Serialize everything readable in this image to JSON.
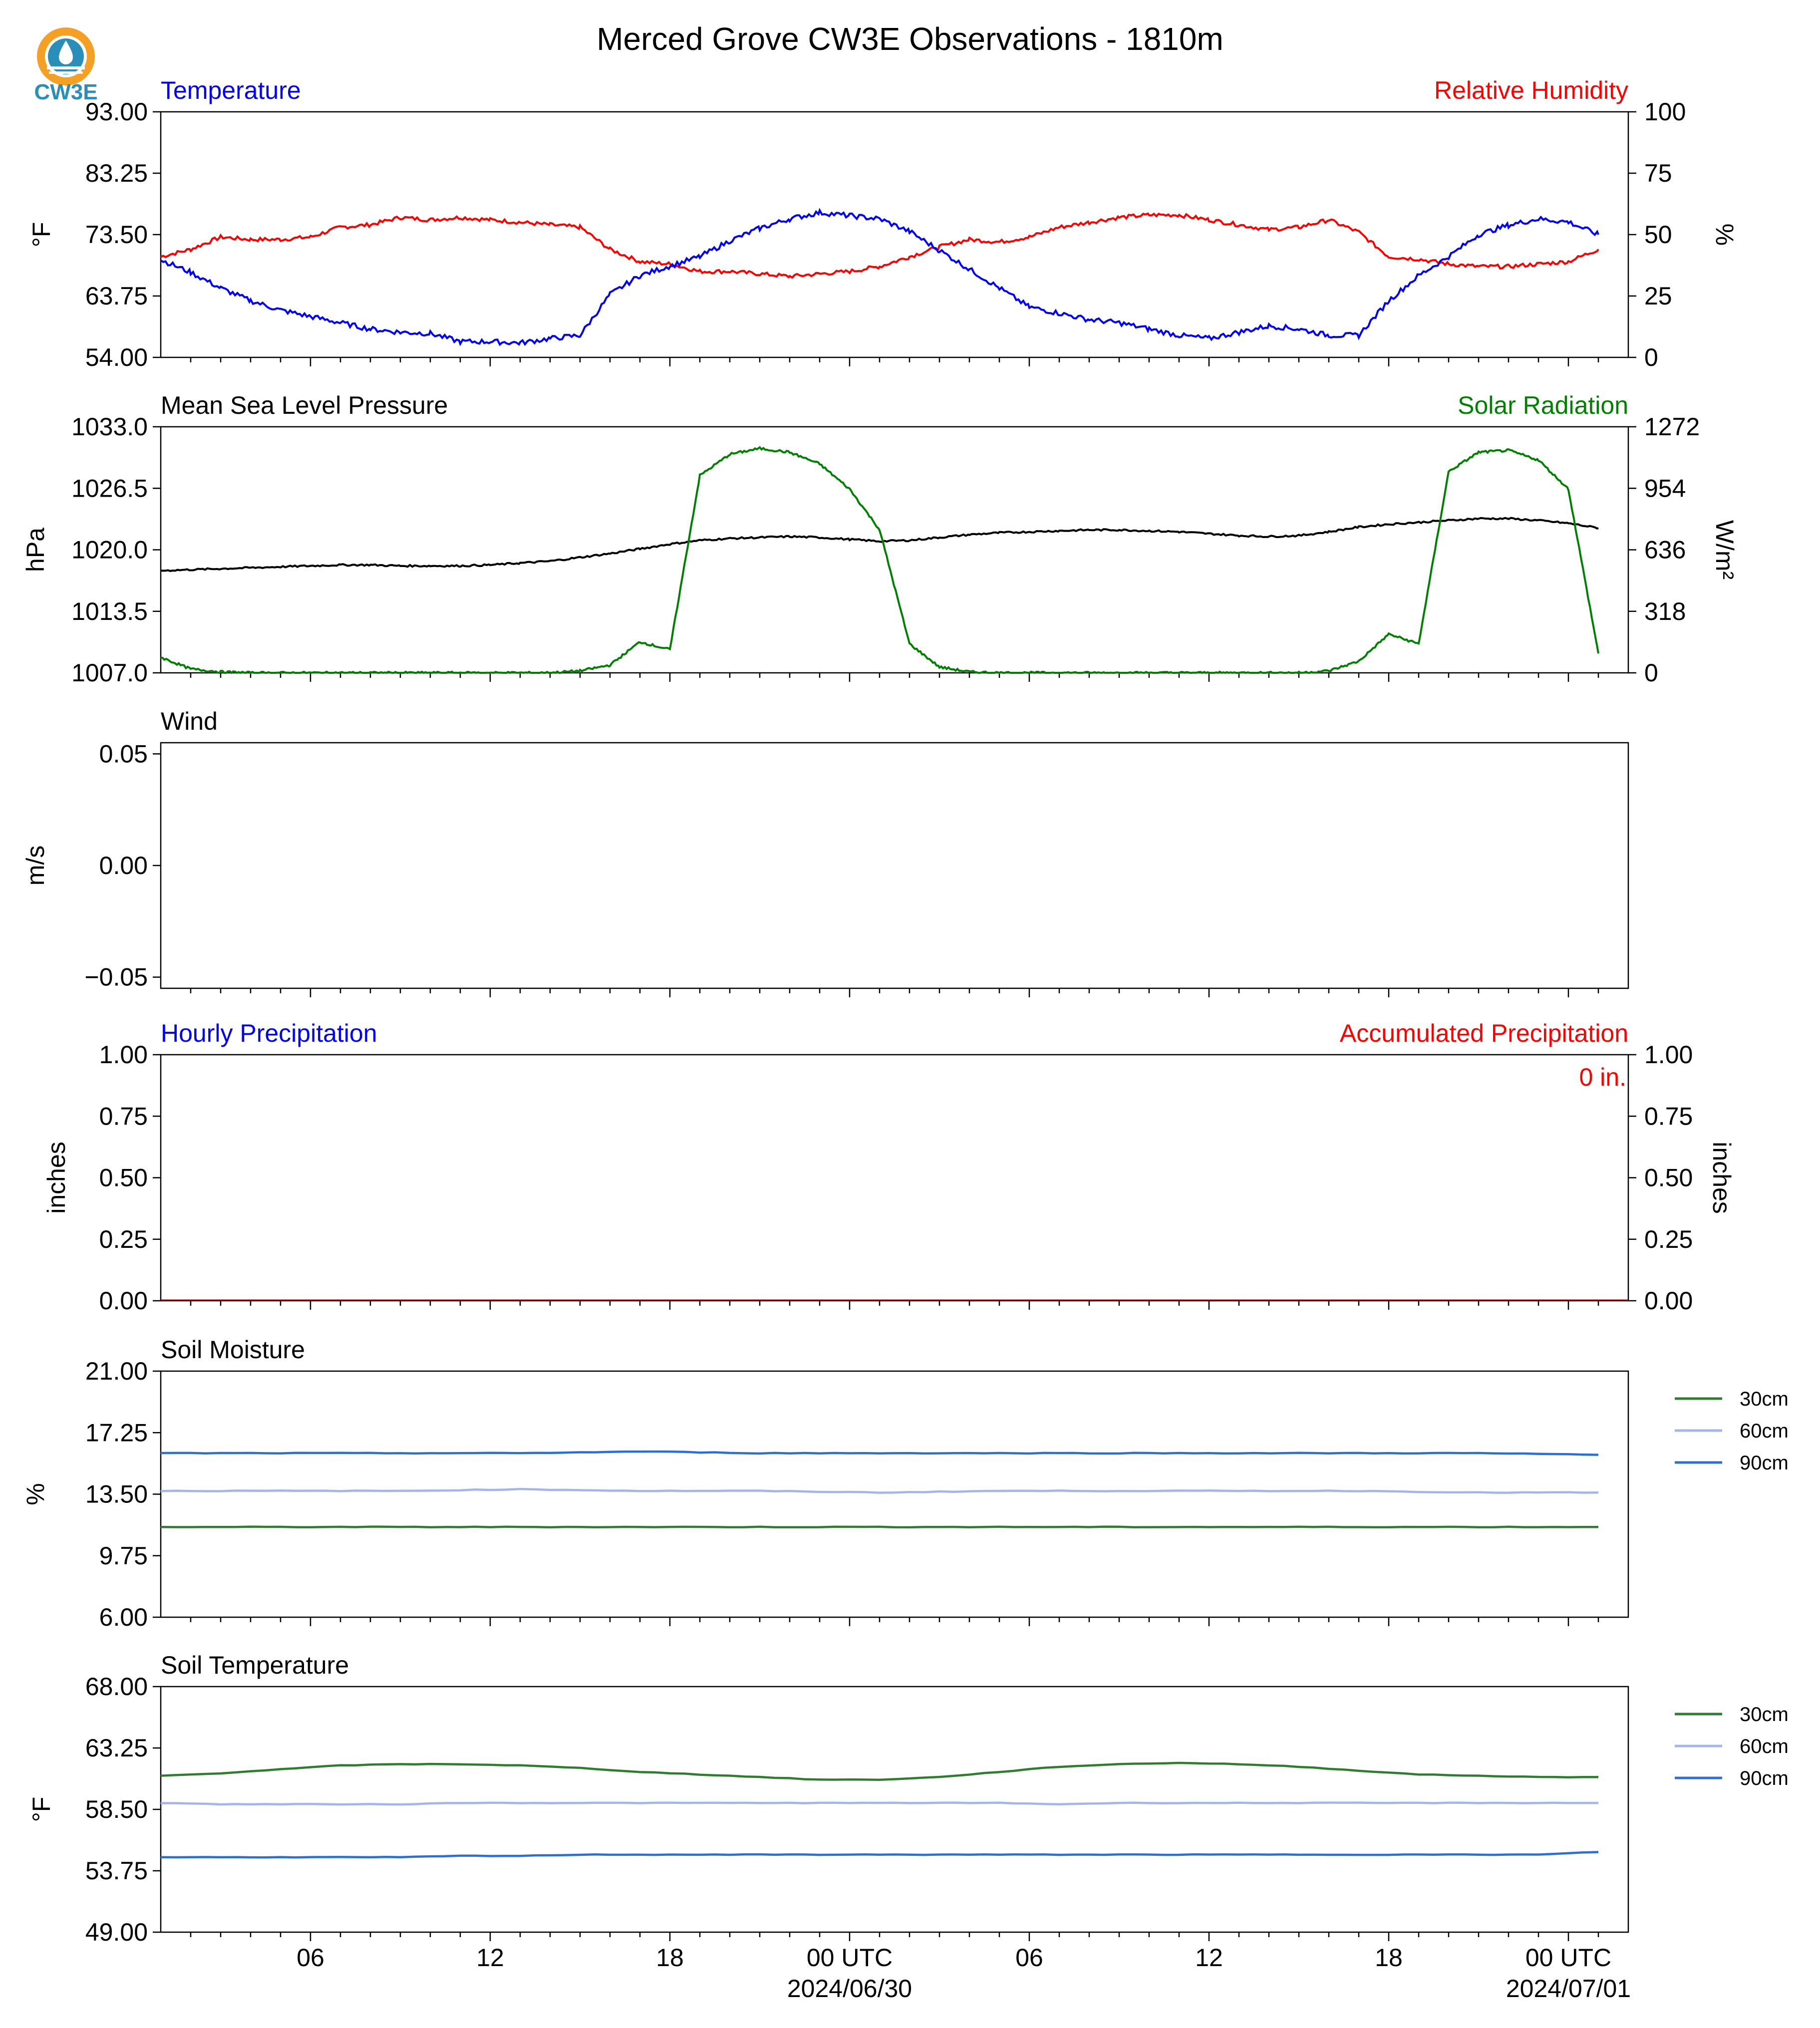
{
  "figure": {
    "title": "Merced Grove CW3E Observations - 1810m",
    "logo_text": "CW3E"
  },
  "x_axis": {
    "tick_labels": [
      "06",
      "12",
      "18",
      "00 UTC",
      "06",
      "12",
      "18",
      "00 UTC"
    ],
    "date_labels": [
      "2024/06/30",
      "2024/07/01"
    ]
  },
  "colors": {
    "temperature": "#0000ff",
    "humidity": "#ff0000",
    "pressure": "#000000",
    "solar": "#008000",
    "soil_30cm": "#2e7d2e",
    "soil_60cm": "#a4b4ec",
    "soil_90cm": "#2b6fd6"
  },
  "chart_data": [
    {
      "type": "line",
      "panel": "temperature-humidity",
      "title_left": "Temperature",
      "title_right": "Relative Humidity",
      "ylabel_left": "°F",
      "ylabel_right": "%",
      "ylim_left": [
        54.0,
        93.0
      ],
      "ylim_right": [
        0,
        100
      ],
      "yticks_left": [
        "93.00",
        "83.25",
        "73.50",
        "63.75",
        "54.00"
      ],
      "yticks_right": [
        "100",
        "75",
        "50",
        "25",
        "0"
      ],
      "x_hours": [
        0,
        1,
        2,
        3,
        4,
        5,
        6,
        7,
        8,
        9,
        10,
        11,
        12,
        13,
        14,
        15,
        16,
        17,
        18,
        19,
        20,
        21,
        22,
        23,
        24,
        25,
        26,
        27,
        28,
        29,
        30,
        31,
        32,
        33,
        34,
        35,
        36,
        37,
        38,
        39,
        40,
        41,
        42,
        43,
        44,
        45,
        46,
        47,
        48
      ],
      "series": [
        {
          "name": "Temperature",
          "axis": "left",
          "values": [
            69.5,
            67.5,
            65.0,
            63.0,
            61.5,
            60.5,
            59.5,
            58.5,
            58.0,
            57.8,
            56.5,
            56.5,
            56.3,
            57.0,
            57.5,
            64.0,
            67.0,
            68.5,
            70.0,
            72.5,
            74.5,
            76.0,
            77.0,
            76.5,
            76.0,
            74.0,
            71.0,
            68.0,
            65.0,
            62.0,
            61.0,
            60.0,
            59.5,
            58.5,
            57.5,
            57.0,
            58.0,
            59.0,
            58.5,
            57.5,
            57.5,
            63.0,
            67.0,
            70.0,
            73.5,
            75.0,
            76.0,
            75.5,
            73.5
          ]
        },
        {
          "name": "Relative Humidity",
          "axis": "right",
          "values": [
            41,
            44,
            49,
            48,
            48,
            49,
            53,
            54,
            57,
            56,
            57,
            56,
            55,
            54,
            53,
            44,
            39,
            38,
            35,
            35,
            34,
            33,
            34,
            35,
            37,
            41,
            45,
            48,
            47,
            49,
            53,
            55,
            57,
            58,
            58,
            56,
            54,
            52,
            53,
            56,
            51,
            41,
            40,
            38,
            37,
            37,
            38,
            39,
            44
          ]
        }
      ]
    },
    {
      "type": "line",
      "panel": "pressure-solar",
      "title_left": "Mean Sea Level Pressure",
      "title_right": "Solar Radiation",
      "ylabel_left": "hPa",
      "ylabel_right": "W/m²",
      "ylim_left": [
        1007.0,
        1033.0
      ],
      "ylim_right": [
        0,
        1272
      ],
      "yticks_left": [
        "1033.0",
        "1026.5",
        "1020.0",
        "1013.5",
        "1007.0"
      ],
      "yticks_right": [
        "1272",
        "954",
        "636",
        "318",
        "0"
      ],
      "x_hours": [
        0,
        1,
        2,
        3,
        4,
        5,
        6,
        7,
        8,
        9,
        10,
        11,
        12,
        13,
        14,
        15,
        16,
        17,
        18,
        19,
        20,
        21,
        22,
        23,
        24,
        25,
        26,
        27,
        28,
        29,
        30,
        31,
        32,
        33,
        34,
        35,
        36,
        37,
        38,
        39,
        40,
        41,
        42,
        43,
        44,
        45,
        46,
        47,
        48
      ],
      "series": [
        {
          "name": "Mean Sea Level Pressure",
          "axis": "left",
          "values": [
            1017.8,
            1017.9,
            1018.0,
            1018.1,
            1018.2,
            1018.3,
            1018.4,
            1018.4,
            1018.3,
            1018.3,
            1018.3,
            1018.4,
            1018.6,
            1018.8,
            1019.2,
            1019.6,
            1020.1,
            1020.6,
            1021.0,
            1021.2,
            1021.3,
            1021.4,
            1021.3,
            1021.1,
            1020.9,
            1021.0,
            1021.3,
            1021.6,
            1021.8,
            1021.9,
            1022.0,
            1022.1,
            1022.1,
            1022.0,
            1021.9,
            1021.7,
            1021.5,
            1021.4,
            1021.5,
            1021.9,
            1022.4,
            1022.7,
            1022.9,
            1023.1,
            1023.3,
            1023.3,
            1023.1,
            1022.8,
            1022.3
          ]
        },
        {
          "name": "Solar Radiation",
          "axis": "right",
          "values": [
            80,
            20,
            5,
            0,
            0,
            0,
            0,
            0,
            0,
            0,
            0,
            0,
            0,
            0,
            10,
            40,
            160,
            120,
            1020,
            1130,
            1160,
            1140,
            1080,
            950,
            740,
            150,
            30,
            5,
            0,
            0,
            0,
            0,
            0,
            0,
            0,
            0,
            0,
            0,
            0,
            10,
            60,
            200,
            150,
            1040,
            1140,
            1150,
            1100,
            950,
            100
          ]
        }
      ]
    },
    {
      "type": "line",
      "panel": "wind",
      "title_left": "Wind",
      "ylabel_left": "m/s",
      "ylim_left": [
        -0.055,
        0.055
      ],
      "yticks_left": [
        "0.05",
        "0.00",
        "−0.05"
      ],
      "series": []
    },
    {
      "type": "bar",
      "panel": "precipitation",
      "title_left": "Hourly Precipitation",
      "title_right": "Accumulated Precipitation",
      "ylabel_left": "inches",
      "ylabel_right": "inches",
      "annotation": "0 in.",
      "ylim_left": [
        0.0,
        1.0
      ],
      "ylim_right": [
        0.0,
        1.0
      ],
      "yticks_left": [
        "1.00",
        "0.75",
        "0.50",
        "0.25",
        "0.00"
      ],
      "yticks_right": [
        "1.00",
        "0.75",
        "0.50",
        "0.25",
        "0.00"
      ],
      "series": [
        {
          "name": "Hourly Precipitation",
          "values": [
            0
          ]
        },
        {
          "name": "Accumulated Precipitation",
          "values": [
            0
          ]
        }
      ]
    },
    {
      "type": "line",
      "panel": "soil-moisture",
      "title_left": "Soil Moisture",
      "ylabel_left": "%",
      "ylim_left": [
        6.0,
        21.0
      ],
      "yticks_left": [
        "21.00",
        "17.25",
        "13.50",
        "9.75",
        "6.00"
      ],
      "legend": [
        "30cm",
        "60cm",
        "90cm"
      ],
      "x_hours": [
        0,
        4,
        8,
        12,
        16,
        20,
        24,
        28,
        32,
        36,
        40,
        44,
        48
      ],
      "series": [
        {
          "name": "30cm",
          "values": [
            11.5,
            11.5,
            11.5,
            11.5,
            11.5,
            11.5,
            11.5,
            11.5,
            11.5,
            11.5,
            11.5,
            11.5,
            11.5
          ]
        },
        {
          "name": "60cm",
          "values": [
            13.7,
            13.7,
            13.7,
            13.8,
            13.7,
            13.7,
            13.6,
            13.7,
            13.7,
            13.7,
            13.7,
            13.6,
            13.6
          ]
        },
        {
          "name": "90cm",
          "values": [
            16.0,
            16.0,
            16.0,
            16.0,
            16.1,
            16.0,
            16.0,
            16.0,
            16.0,
            16.0,
            16.0,
            16.0,
            15.9
          ]
        }
      ]
    },
    {
      "type": "line",
      "panel": "soil-temperature",
      "title_left": "Soil Temperature",
      "ylabel_left": "°F",
      "ylim_left": [
        49.0,
        68.0
      ],
      "yticks_left": [
        "68.00",
        "63.25",
        "58.50",
        "53.75",
        "49.00"
      ],
      "legend": [
        "30cm",
        "60cm",
        "90cm"
      ],
      "x_hours": [
        0,
        2,
        4,
        6,
        8,
        10,
        12,
        14,
        16,
        18,
        20,
        22,
        24,
        26,
        28,
        30,
        32,
        34,
        36,
        38,
        40,
        42,
        44,
        46,
        48
      ],
      "series": [
        {
          "name": "30cm",
          "values": [
            61.1,
            61.3,
            61.6,
            61.9,
            62.0,
            62.0,
            61.9,
            61.7,
            61.4,
            61.2,
            61.0,
            60.8,
            60.8,
            61.0,
            61.4,
            61.8,
            62.0,
            62.1,
            62.0,
            61.8,
            61.5,
            61.2,
            61.1,
            61.0,
            61.0
          ]
        },
        {
          "name": "60cm",
          "values": [
            59.0,
            58.9,
            58.9,
            58.9,
            58.9,
            59.0,
            59.0,
            59.0,
            59.0,
            59.0,
            59.0,
            59.0,
            59.0,
            59.0,
            59.0,
            58.9,
            59.0,
            59.0,
            59.0,
            59.0,
            59.0,
            59.0,
            59.0,
            59.0,
            59.0
          ]
        },
        {
          "name": "90cm",
          "values": [
            54.8,
            54.8,
            54.8,
            54.8,
            54.8,
            54.9,
            54.9,
            55.0,
            55.0,
            55.0,
            55.0,
            55.0,
            55.0,
            55.0,
            55.0,
            55.0,
            55.0,
            55.0,
            55.0,
            55.0,
            55.0,
            55.0,
            55.0,
            55.0,
            55.2
          ]
        }
      ]
    }
  ]
}
